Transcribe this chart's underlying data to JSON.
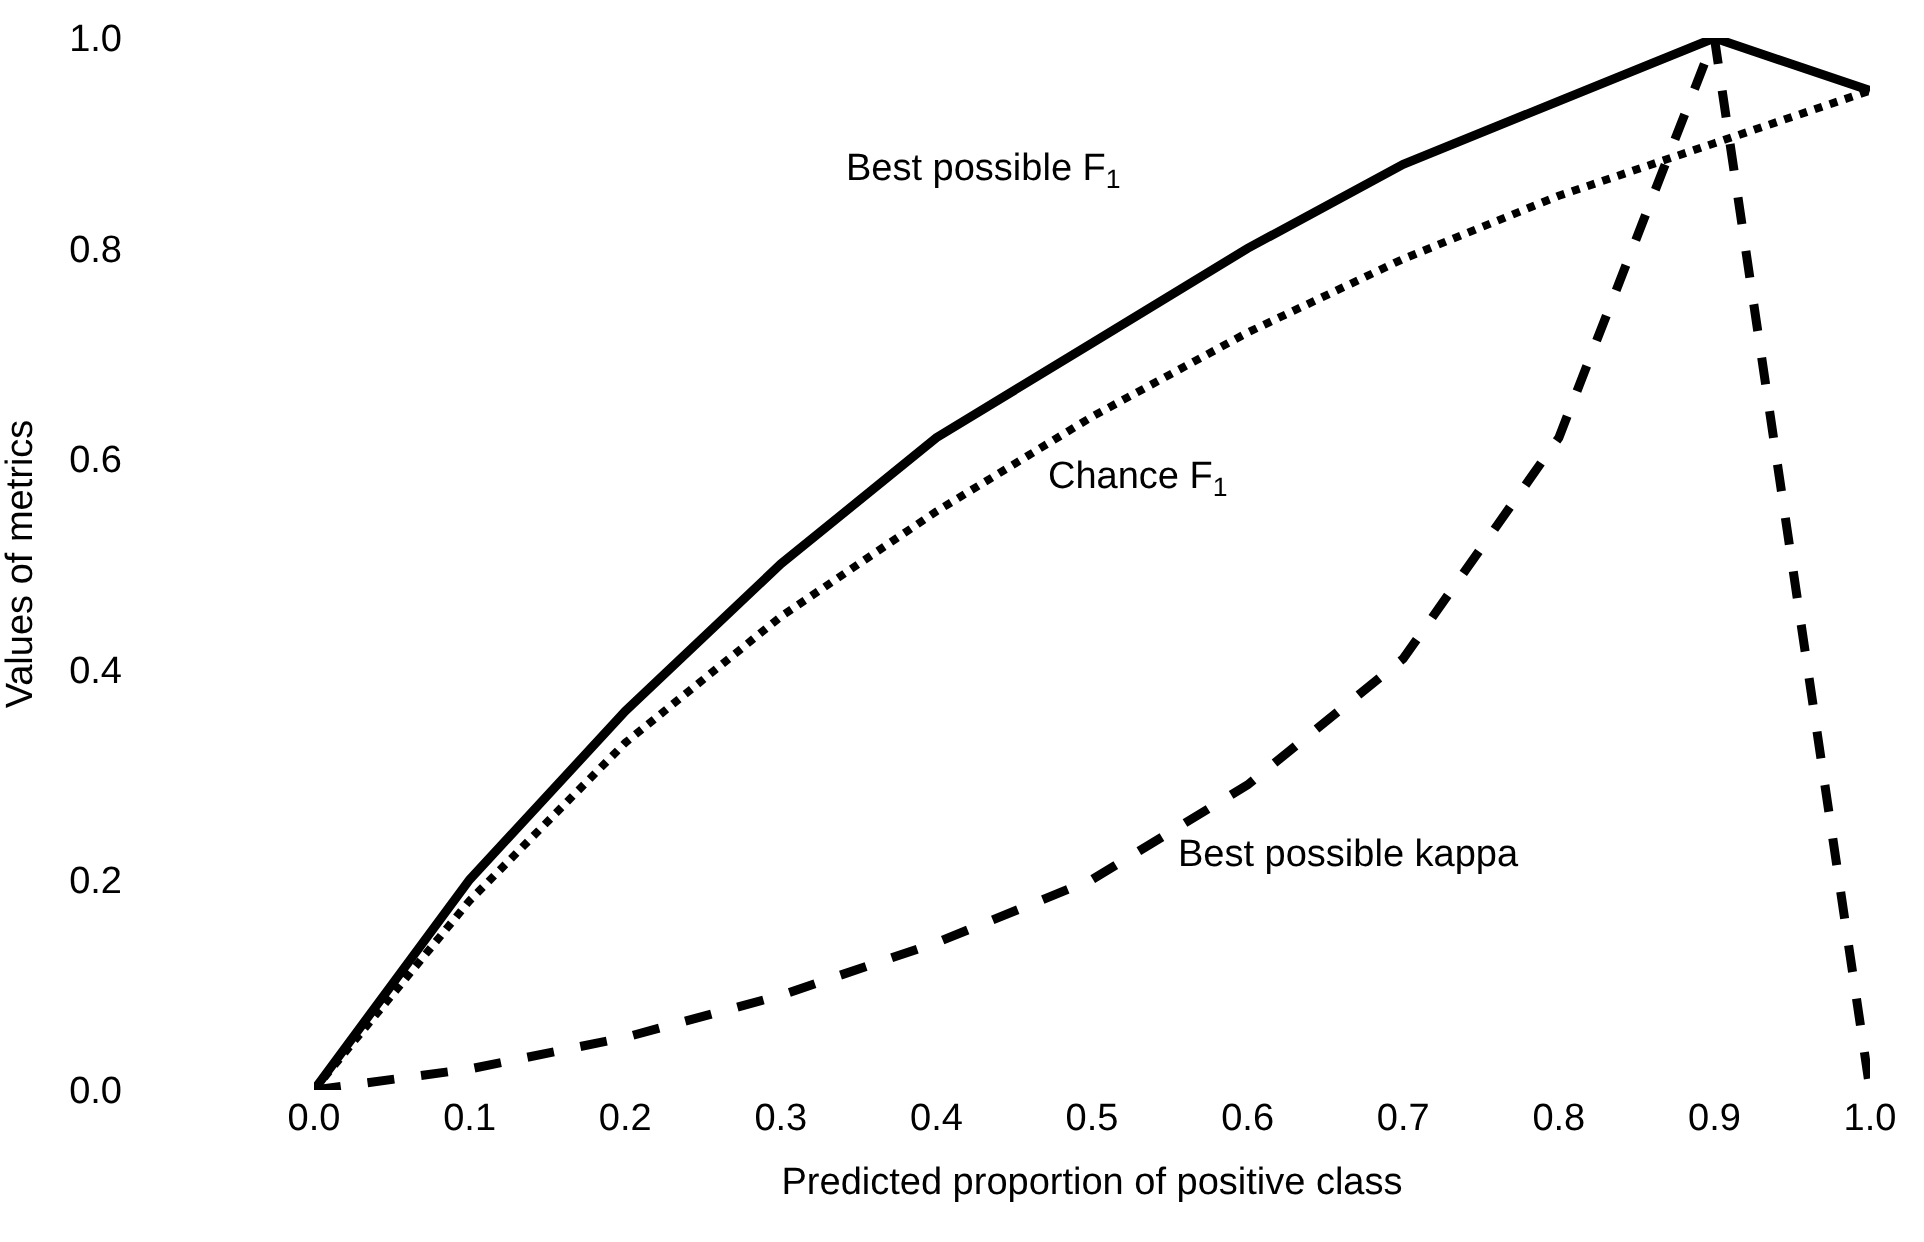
{
  "chart_data": {
    "type": "line",
    "xlabel": "Predicted proportion of positive class",
    "ylabel": "Values of metrics",
    "x": [
      0,
      0.1,
      0.2,
      0.3,
      0.4,
      0.5,
      0.6,
      0.7,
      0.8,
      0.9,
      1.0
    ],
    "series": [
      {
        "color": "#000000",
        "line_style": "solid",
        "values": [
          0,
          0.2,
          0.36,
          0.5,
          0.62,
          0.71,
          0.8,
          0.88,
          0.94,
          1.0,
          0.95
        ]
      },
      {
        "color": "#000000",
        "line_style": "dotted",
        "values": [
          0,
          0.18,
          0.33,
          0.45,
          0.55,
          0.64,
          0.72,
          0.79,
          0.85,
          0.9,
          0.95
        ]
      },
      {
        "color": "#000000",
        "line_style": "dashed",
        "values": [
          0,
          0.02,
          0.05,
          0.09,
          0.14,
          0.2,
          0.29,
          0.41,
          0.62,
          1.0,
          0.0
        ]
      }
    ],
    "annotations": [
      "Best possible F$_{1}$",
      "Chance F$_{1}$",
      "Best possible kappa"
    ],
    "xlim": [
      0,
      1.0
    ],
    "ylim": [
      0,
      1.0
    ],
    "xticks": [
      {
        "value": 0,
        "label": "0.0"
      },
      {
        "value": 0.1,
        "label": "0.1"
      },
      {
        "value": 0.2,
        "label": "0.2"
      },
      {
        "value": 0.3,
        "label": "0.3"
      },
      {
        "value": 0.4,
        "label": "0.4"
      },
      {
        "value": 0.5,
        "label": "0.5"
      },
      {
        "value": 0.6,
        "label": "0.6"
      },
      {
        "value": 0.7,
        "label": "0.7"
      },
      {
        "value": 0.8,
        "label": "0.8"
      },
      {
        "value": 0.9,
        "label": "0.9"
      },
      {
        "value": 1.0,
        "label": "1.0"
      }
    ],
    "yticks": [
      {
        "value": 0,
        "label": "0.0"
      },
      {
        "value": 0.2,
        "label": "0.2"
      },
      {
        "value": 0.4,
        "label": "0.4"
      },
      {
        "value": 0.6,
        "label": "0.6"
      },
      {
        "value": 0.8,
        "label": "0.8"
      },
      {
        "value": 1.0,
        "label": "1.0"
      }
    ],
    "grid": false
  }
}
